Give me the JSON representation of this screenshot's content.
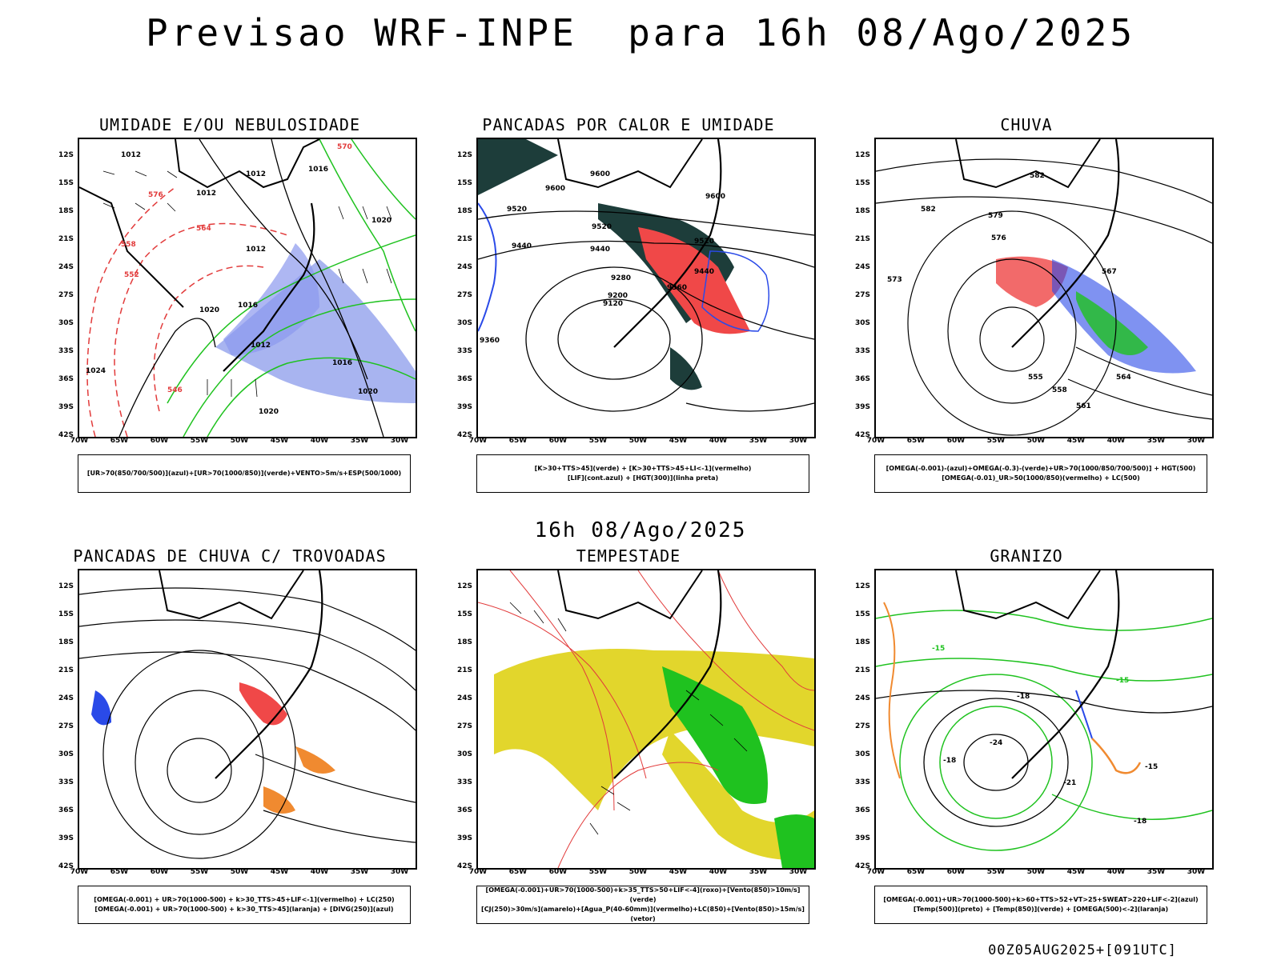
{
  "main_title": "Previsao WRF-INPE  para 16h 08/Ago/2025",
  "mid_title": "16h 08/Ago/2025",
  "footer": "00Z05AUG2025+[091UTC]",
  "axes": {
    "lat_labels": [
      "12S",
      "15S",
      "18S",
      "21S",
      "24S",
      "27S",
      "30S",
      "33S",
      "36S",
      "39S",
      "42S"
    ],
    "lon_labels": [
      "70W",
      "65W",
      "60W",
      "55W",
      "50W",
      "45W",
      "40W",
      "35W",
      "30W"
    ]
  },
  "panels": [
    {
      "title": "UMIDADE E/OU NEBULOSIDADE",
      "legend": [
        "[UR>70(850/700/500)](azul)+[UR>70(1000/850)](verde)+VENTO>5m/s+ESP(500/1000)"
      ],
      "contour_labels": [
        "1012",
        "1012",
        "1012",
        "1016",
        "1012",
        "1020",
        "1020",
        "1024",
        "1012",
        "1016",
        "1020",
        "1016",
        "1020",
        "576",
        "570",
        "564",
        "558",
        "552",
        "546"
      ]
    },
    {
      "title": "PANCADAS POR CALOR E UMIDADE",
      "legend": [
        "[K>30+TTS>45](verde) + [K>30+TTS>45+LI<-1](vermelho)",
        "[LIF](cont.azul) + [HGT(300)](linha preta)"
      ],
      "contour_labels": [
        "9600",
        "9600",
        "9600",
        "9520",
        "9520",
        "9440",
        "9440",
        "9520",
        "9280",
        "9200",
        "9360",
        "9440",
        "9120",
        "9360"
      ]
    },
    {
      "title": "CHUVA",
      "legend": [
        "[OMEGA(-0.001)-(azul)+OMEGA(-0.3)-(verde)+UR>70(1000/850/700/500)] + HGT(500)",
        "[OMEGA(-0.01)_UR>50(1000/850)(vermelho) + LC(500)"
      ],
      "contour_labels": [
        "582",
        "582",
        "579",
        "576",
        "573",
        "555",
        "558",
        "561",
        "564",
        "567"
      ]
    },
    {
      "title": "PANCADAS DE CHUVA C/ TROVOADAS",
      "legend": [
        "[OMEGA(-0.001) + UR>70(1000-500) + k>30_TTS>45+LIF<-1](vermelho) + LC(250)",
        "[OMEGA(-0.001) + UR>70(1000-500) + k>30_TTS>45](laranja) + [DIVG(250)](azul)"
      ],
      "contour_labels": []
    },
    {
      "title": "TEMPESTADE",
      "legend": [
        "[OMEGA(-0.001)+UR>70(1000-500)+k>35_TTS>50+LIF<-4](roxo)+[Vento(850)>10m/s](verde)",
        "[CJ(250)>30m/s](amarelo)+[Agua_P(40-60mm)](vermelho)+LC(850)+[Vento(850)>15m/s](vetor)"
      ],
      "contour_labels": []
    },
    {
      "title": "GRANIZO",
      "legend": [
        "[OMEGA(-0.001)+UR>70(1000-500)+k>60+TTS>52+VT>25+SWEAT>220+LIF<-2](azul)",
        "[Temp(500)](preto) + [Temp(850)](verde) + [OMEGA(500)<-2](laranja)"
      ],
      "contour_labels": [
        "-18",
        "-24",
        "-21",
        "-15",
        "-18",
        "-18",
        "-15",
        "-15"
      ]
    }
  ]
}
